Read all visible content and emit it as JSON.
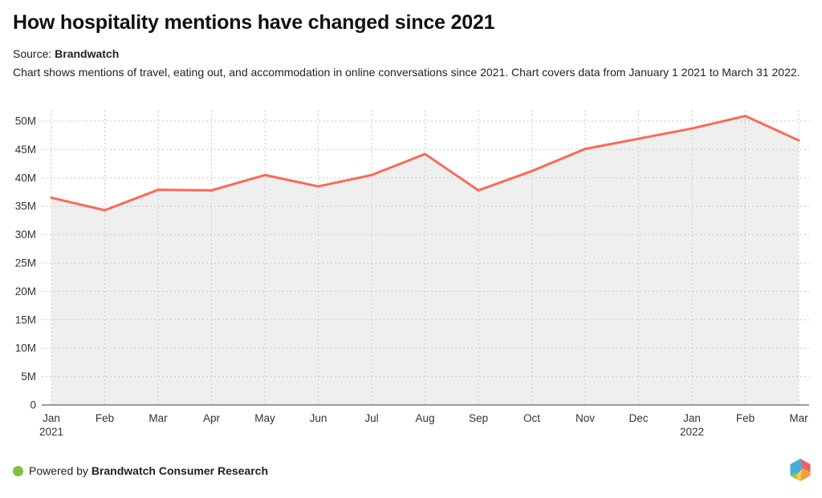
{
  "header": {
    "title": "How hospitality mentions have changed since 2021",
    "source_label": "Source:",
    "source_name": "Brandwatch",
    "description": "Chart shows mentions of travel, eating out, and accommodation in online conversations since 2021. Chart covers data from January 1 2021 to March 31 2022."
  },
  "chart_data": {
    "type": "area",
    "title": "How hospitality mentions have changed since 2021",
    "x": [
      "Jan 2021",
      "Feb 2021",
      "Mar 2021",
      "Apr 2021",
      "May 2021",
      "Jun 2021",
      "Jul 2021",
      "Aug 2021",
      "Sep 2021",
      "Oct 2021",
      "Nov 2021",
      "Dec 2021",
      "Jan 2022",
      "Feb 2022",
      "Mar 2022"
    ],
    "x_tick_labels": [
      "Jan",
      "Feb",
      "Mar",
      "Apr",
      "May",
      "Jun",
      "Jul",
      "Aug",
      "Sep",
      "Oct",
      "Nov",
      "Dec",
      "Jan",
      "Feb",
      "Mar"
    ],
    "year_labels": [
      {
        "index": 0,
        "label": "2021"
      },
      {
        "index": 12,
        "label": "2022"
      }
    ],
    "series": [
      {
        "name": "Hospitality mentions",
        "values_millions": [
          36.5,
          34.3,
          37.9,
          37.8,
          40.5,
          38.5,
          40.5,
          44.2,
          37.8,
          41.2,
          45.1,
          46.9,
          48.7,
          50.9,
          46.6
        ]
      }
    ],
    "unit": "M",
    "ylabel": "",
    "xlabel": "",
    "ylim_millions": [
      0,
      50
    ],
    "y_tick_step_millions": 5,
    "y_tick_labels": [
      "0",
      "5M",
      "10M",
      "15M",
      "20M",
      "25M",
      "30M",
      "35M",
      "40M",
      "45M",
      "50M"
    ],
    "grid": "dashed",
    "legend": "none",
    "colors": {
      "line": "#fa6a57",
      "area_fill": "#efefef",
      "gridline": "#c9c9c9",
      "axis_line": "#7d7d7d",
      "tick_text": "#333333"
    }
  },
  "footer": {
    "powered_by": "Powered by",
    "brand": "Brandwatch Consumer Research",
    "dot_color": "#7cc142",
    "logo_colors": {
      "blue": "#47ace0",
      "pink": "#ef5f64",
      "orange": "#f89b3c",
      "yellow": "#fbc93c",
      "green": "#8cc63f"
    }
  }
}
